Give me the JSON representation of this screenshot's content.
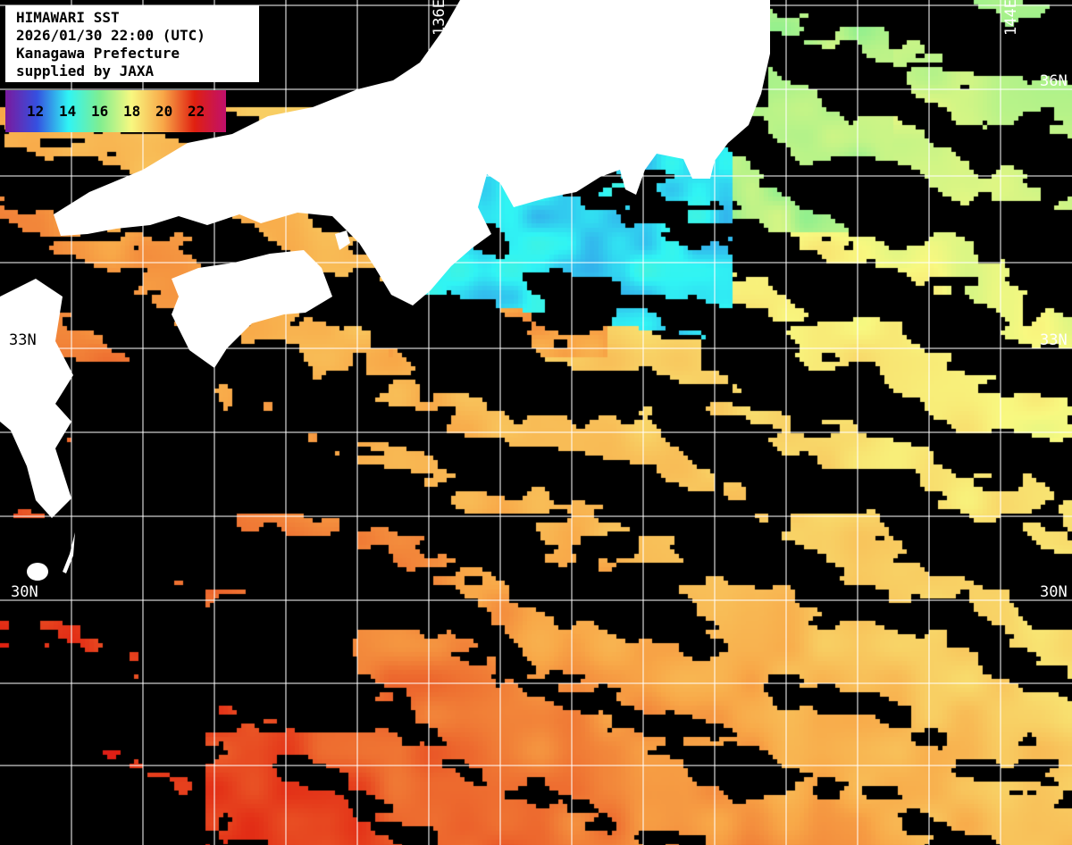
{
  "info": {
    "title": "HIMAWARI SST",
    "datetime": "2026/01/30 22:00 (UTC)",
    "organization": "Kanagawa Prefecture",
    "credit": "supplied by JAXA"
  },
  "legend": {
    "ticks": [
      "12",
      "14",
      "16",
      "18",
      "20",
      "22"
    ],
    "range": [
      10,
      24
    ],
    "colors": [
      "#7a1a9e",
      "#3550e0",
      "#30f4f4",
      "#80ee90",
      "#f8f880",
      "#f8a848",
      "#e02010",
      "#c0106c"
    ]
  },
  "grid": {
    "lon_labels": [
      "136E",
      "144E"
    ],
    "lat_labels_right": [
      "36N",
      "33N",
      "30N"
    ],
    "lat_labels_left": [
      "33N",
      "30N"
    ]
  },
  "colors": {
    "land": "#ffffff",
    "no_data": "#000000",
    "grid": "#ffffff"
  }
}
